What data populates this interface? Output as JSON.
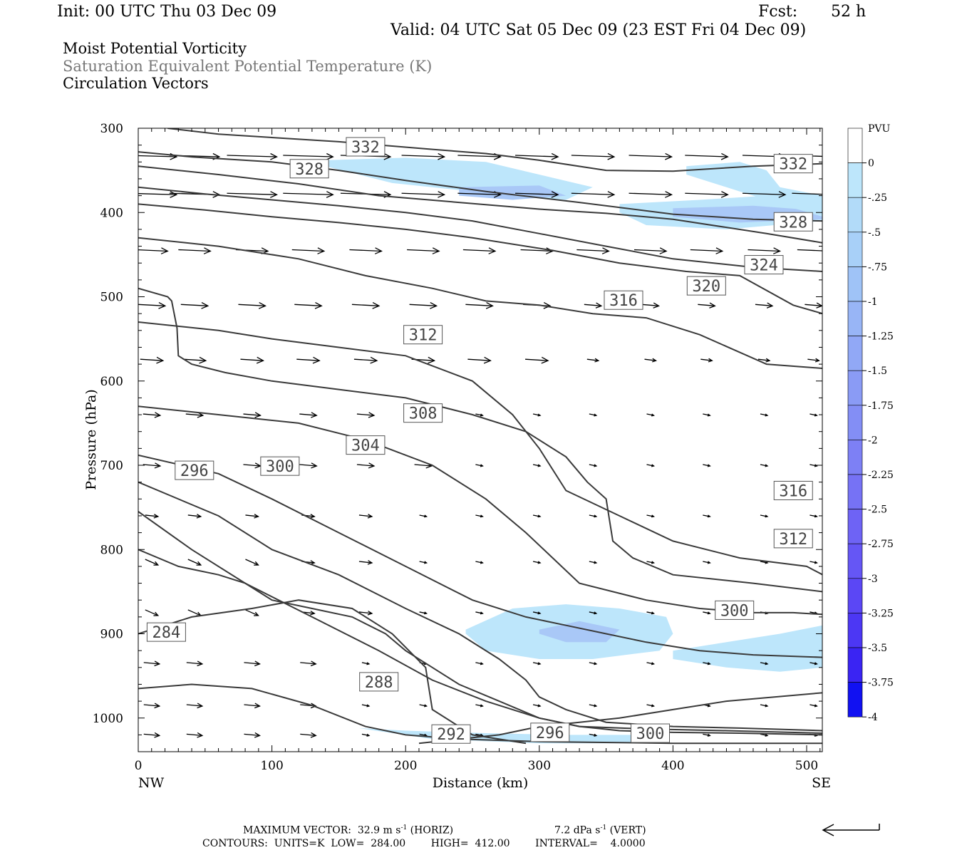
{
  "header": {
    "init": "Init: 00 UTC Thu 03 Dec 09",
    "fcst_label": "Fcst:",
    "fcst_value": "52 h",
    "valid": "Valid: 04 UTC Sat 05 Dec 09 (23 EST Fri 04 Dec 09)"
  },
  "fields": {
    "line1": "Moist Potential Vorticity",
    "line2": "Saturation Equivalent Potential Temperature (K)",
    "line3": "Circulation Vectors"
  },
  "chart_data": {
    "type": "cross-section",
    "xlabel": "Distance (km)",
    "ylabel": "Pressure (hPa)",
    "xlim": [
      0,
      512
    ],
    "ylim": [
      1040,
      300
    ],
    "x_ticks": [
      0,
      100,
      200,
      300,
      400,
      500
    ],
    "y_ticks": [
      300,
      400,
      500,
      600,
      700,
      800,
      900,
      1000
    ],
    "x_end_labels": [
      "NW",
      "SE"
    ],
    "contour_labels": [
      {
        "text": "332",
        "x": 170,
        "p": 322
      },
      {
        "text": "328",
        "x": 128,
        "p": 348
      },
      {
        "text": "332",
        "x": 490,
        "p": 342
      },
      {
        "text": "328",
        "x": 490,
        "p": 411
      },
      {
        "text": "324",
        "x": 468,
        "p": 462
      },
      {
        "text": "320",
        "x": 425,
        "p": 487
      },
      {
        "text": "316",
        "x": 363,
        "p": 504
      },
      {
        "text": "312",
        "x": 213,
        "p": 545
      },
      {
        "text": "308",
        "x": 213,
        "p": 638
      },
      {
        "text": "304",
        "x": 170,
        "p": 676
      },
      {
        "text": "300",
        "x": 106,
        "p": 701
      },
      {
        "text": "296",
        "x": 42,
        "p": 706
      },
      {
        "text": "316",
        "x": 490,
        "p": 730
      },
      {
        "text": "312",
        "x": 490,
        "p": 787
      },
      {
        "text": "300",
        "x": 446,
        "p": 872
      },
      {
        "text": "284",
        "x": 21,
        "p": 898
      },
      {
        "text": "288",
        "x": 180,
        "p": 957
      },
      {
        "text": "292",
        "x": 234,
        "p": 1019
      },
      {
        "text": "296",
        "x": 308,
        "p": 1017
      },
      {
        "text": "300",
        "x": 383,
        "p": 1018
      }
    ],
    "contours": [
      {
        "x": [
          22,
          60,
          150,
          220,
          260,
          300,
          350,
          400,
          460,
          512
        ],
        "p": [
          300,
          307,
          316,
          325,
          330,
          338,
          350,
          351,
          345,
          342
        ]
      },
      {
        "x": [
          0,
          40,
          100,
          150,
          200,
          260,
          330,
          400,
          460,
          512
        ],
        "p": [
          328,
          334,
          340,
          350,
          362,
          375,
          388,
          402,
          408,
          410
        ]
      },
      {
        "x": [
          0,
          60,
          120,
          180,
          240,
          300,
          350,
          400,
          470,
          512
        ],
        "p": [
          345,
          355,
          366,
          380,
          388,
          396,
          401,
          408,
          425,
          436
        ]
      },
      {
        "x": [
          0,
          50,
          100,
          150,
          200,
          250,
          300,
          350,
          400,
          460,
          512
        ],
        "p": [
          370,
          378,
          385,
          392,
          400,
          410,
          425,
          440,
          455,
          465,
          470
        ]
      },
      {
        "x": [
          0,
          50,
          100,
          150,
          200,
          250,
          310,
          360,
          410,
          450,
          490,
          512
        ],
        "p": [
          390,
          397,
          405,
          412,
          420,
          430,
          445,
          460,
          470,
          475,
          510,
          520
        ]
      },
      {
        "x": [
          0,
          60,
          120,
          170,
          220,
          260,
          300,
          340,
          380,
          420,
          470,
          512
        ],
        "p": [
          430,
          440,
          455,
          475,
          490,
          505,
          510,
          520,
          525,
          545,
          580,
          585
        ]
      },
      {
        "x": [
          0,
          22,
          25,
          29,
          30,
          40,
          65,
          100,
          150,
          200,
          250,
          290,
          320,
          336,
          350,
          355,
          370,
          400,
          460,
          512
        ],
        "p": [
          490,
          500,
          505,
          537,
          570,
          580,
          590,
          600,
          610,
          620,
          640,
          660,
          690,
          720,
          740,
          790,
          810,
          830,
          840,
          850
        ]
      },
      {
        "x": [
          0,
          60,
          100,
          150,
          200,
          250,
          280,
          300,
          320,
          360,
          400,
          450,
          500,
          512
        ],
        "p": [
          530,
          540,
          550,
          560,
          570,
          600,
          640,
          680,
          730,
          760,
          790,
          810,
          820,
          830
        ]
      },
      {
        "x": [
          0,
          60,
          120,
          170,
          220,
          260,
          290,
          310,
          330,
          380,
          420,
          460,
          490,
          512
        ],
        "p": [
          630,
          640,
          650,
          670,
          700,
          740,
          780,
          810,
          840,
          860,
          870,
          875,
          875,
          877
        ]
      },
      {
        "x": [
          0,
          60,
          100,
          150,
          200,
          250,
          290,
          320,
          350,
          380,
          420,
          460,
          512
        ],
        "p": [
          688,
          710,
          740,
          780,
          820,
          860,
          880,
          890,
          900,
          910,
          920,
          925,
          928
        ]
      },
      {
        "x": [
          0,
          60,
          100,
          150,
          200,
          240,
          270,
          290,
          300,
          320,
          350,
          400,
          450,
          512
        ],
        "p": [
          720,
          760,
          800,
          830,
          870,
          900,
          930,
          955,
          975,
          990,
          1005,
          1010,
          1012,
          1015
        ]
      },
      {
        "x": [
          0,
          40,
          80,
          130,
          180,
          220,
          260,
          300,
          330,
          380,
          440,
          512
        ],
        "p": [
          755,
          800,
          840,
          880,
          920,
          955,
          980,
          1000,
          1010,
          1013,
          1015,
          1018
        ]
      },
      {
        "x": [
          0,
          30,
          60,
          80,
          100,
          130,
          160,
          185,
          200,
          220,
          240,
          270,
          300,
          330,
          360,
          400,
          450,
          512
        ],
        "p": [
          800,
          820,
          830,
          840,
          860,
          870,
          880,
          900,
          920,
          940,
          960,
          980,
          1000,
          1010,
          1015,
          1017,
          1018,
          1020
        ]
      },
      {
        "x": [
          0,
          40,
          85,
          120,
          160,
          190,
          215,
          220,
          240,
          250,
          290
        ],
        "p": [
          900,
          880,
          870,
          860,
          870,
          900,
          940,
          990,
          1010,
          1020,
          1030
        ]
      },
      {
        "x": [
          210,
          240,
          270,
          300,
          330,
          360,
          400,
          440,
          512
        ],
        "p": [
          1030,
          1025,
          1020,
          1010,
          1005,
          1000,
          990,
          980,
          970
        ]
      },
      {
        "x": [
          0,
          40,
          85,
          130,
          170,
          200,
          240,
          300,
          400,
          512
        ],
        "p": [
          965,
          960,
          965,
          985,
          1010,
          1020,
          1025,
          1028,
          1030,
          1030
        ]
      }
    ],
    "pv_shading": [
      {
        "level": -0.25,
        "x": [
          140,
          200,
          260,
          340,
          320,
          250,
          190,
          140
        ],
        "p": [
          338,
          335,
          340,
          370,
          385,
          375,
          365,
          345
        ]
      },
      {
        "level": -0.5,
        "x": [
          240,
          300,
          320,
          280,
          240
        ],
        "p": [
          370,
          368,
          380,
          385,
          380
        ]
      },
      {
        "level": -0.25,
        "x": [
          360,
          420,
          470,
          512,
          512,
          440,
          380,
          360
        ],
        "p": [
          390,
          385,
          380,
          385,
          410,
          420,
          415,
          400
        ]
      },
      {
        "level": -0.5,
        "x": [
          400,
          460,
          512,
          512,
          450,
          400
        ],
        "p": [
          395,
          392,
          398,
          408,
          412,
          405
        ]
      },
      {
        "level": -0.25,
        "x": [
          410,
          450,
          470,
          480,
          512,
          512,
          480,
          450,
          410
        ],
        "p": [
          345,
          340,
          350,
          370,
          380,
          405,
          390,
          375,
          355
        ]
      },
      {
        "level": -0.25,
        "x": [
          245,
          280,
          320,
          360,
          395,
          400,
          390,
          340,
          300,
          260,
          245
        ],
        "p": [
          895,
          870,
          865,
          870,
          880,
          900,
          920,
          930,
          930,
          920,
          900
        ]
      },
      {
        "level": -0.5,
        "x": [
          300,
          330,
          360,
          350,
          320,
          300
        ],
        "p": [
          895,
          885,
          895,
          910,
          910,
          900
        ]
      },
      {
        "level": -0.25,
        "x": [
          400,
          440,
          480,
          512,
          512,
          480,
          440,
          400
        ],
        "p": [
          920,
          910,
          900,
          890,
          940,
          945,
          940,
          930
        ]
      },
      {
        "level": -0.25,
        "x": [
          165,
          200,
          260,
          320,
          380,
          390,
          300,
          220,
          165
        ],
        "p": [
          1012,
          1015,
          1018,
          1020,
          1020,
          1030,
          1030,
          1025,
          1012
        ]
      }
    ],
    "colorbar": {
      "units": "PVU",
      "labels": [
        "0",
        "-.25",
        "-.5",
        "-.75",
        "-1",
        "-1.25",
        "-1.5",
        "-1.75",
        "-2",
        "-2.25",
        "-2.5",
        "-2.75",
        "-3",
        "-3.25",
        "-3.5",
        "-3.75",
        "-4"
      ],
      "colors": [
        "#ffffff",
        "#bde6fb",
        "#b2dbf9",
        "#a8d0f8",
        "#9fc3f7",
        "#98b5f6",
        "#91a8f6",
        "#8a9bf5",
        "#838ef5",
        "#7d80f5",
        "#7672f5",
        "#6e63f5",
        "#6556f5",
        "#5b47f5",
        "#4c37f4",
        "#3a24f3",
        "#1111f2"
      ]
    }
  },
  "footer": {
    "max_vector_label": "MAXIMUM VECTOR:",
    "horiz_value": "32.9 m s",
    "horiz_suffix": " (HORIZ)",
    "vert_value": "7.2 dPa s",
    "vert_suffix": " (VERT)",
    "exponent": "-1",
    "contours_line": "CONTOURS:  UNITS=K  LOW=  284.00        HIGH=  412.00        INTERVAL=    4.0000"
  }
}
